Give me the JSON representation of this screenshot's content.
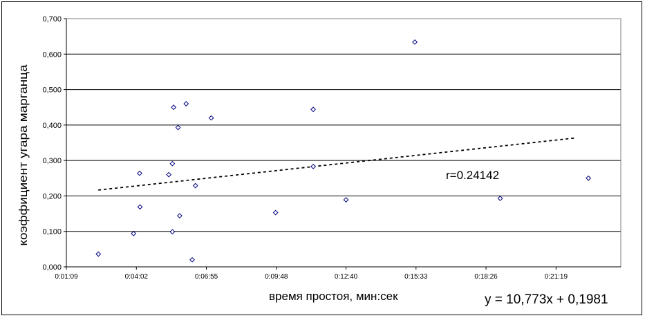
{
  "chart_data": {
    "type": "scatter",
    "title": "",
    "xlabel": "время простоя, мин:сек",
    "ylabel": "коэффициент угара марганца",
    "x_unit": "time h:mm:ss",
    "xlim": [
      "0:01:09",
      "0:23:59"
    ],
    "ylim": [
      0,
      0.7
    ],
    "x_ticks": [
      "0:01:09",
      "0:04:02",
      "0:06:55",
      "0:09:48",
      "0:12:40",
      "0:15:33",
      "0:18:26",
      "0:21:19"
    ],
    "y_ticks": [
      "0,000",
      "0,100",
      "0,200",
      "0,300",
      "0,400",
      "0,500",
      "0,600",
      "0,700"
    ],
    "y_tick_values": [
      0,
      0.1,
      0.2,
      0.3,
      0.4,
      0.5,
      0.6,
      0.7
    ],
    "grid": {
      "horizontal": true,
      "vertical": false
    },
    "legend": "none",
    "marker": {
      "shape": "diamond",
      "color": "#000080"
    },
    "series": [
      {
        "name": "",
        "points": [
          {
            "x": "0:02:28",
            "y": 0.036
          },
          {
            "x": "0:03:55",
            "y": 0.094
          },
          {
            "x": "0:04:10",
            "y": 0.264
          },
          {
            "x": "0:04:11",
            "y": 0.169
          },
          {
            "x": "0:05:22",
            "y": 0.26
          },
          {
            "x": "0:05:31",
            "y": 0.291
          },
          {
            "x": "0:05:31",
            "y": 0.099
          },
          {
            "x": "0:05:34",
            "y": 0.45
          },
          {
            "x": "0:05:45",
            "y": 0.393
          },
          {
            "x": "0:05:49",
            "y": 0.144
          },
          {
            "x": "0:06:05",
            "y": 0.46
          },
          {
            "x": "0:06:20",
            "y": 0.02
          },
          {
            "x": "0:06:28",
            "y": 0.229
          },
          {
            "x": "0:07:07",
            "y": 0.42
          },
          {
            "x": "0:09:46",
            "y": 0.153
          },
          {
            "x": "0:11:19",
            "y": 0.444
          },
          {
            "x": "0:11:19",
            "y": 0.283
          },
          {
            "x": "0:12:40",
            "y": 0.189
          },
          {
            "x": "0:15:30",
            "y": 0.634
          },
          {
            "x": "0:19:01",
            "y": 0.193
          },
          {
            "x": "0:22:39",
            "y": 0.25
          }
        ]
      }
    ],
    "trendline": {
      "type": "linear",
      "style": "dashed",
      "x_start": "0:02:28",
      "x_end": "0:22:10",
      "equation": "y = 10,773x + 0,1981",
      "r_label": "r=0.24142"
    }
  }
}
